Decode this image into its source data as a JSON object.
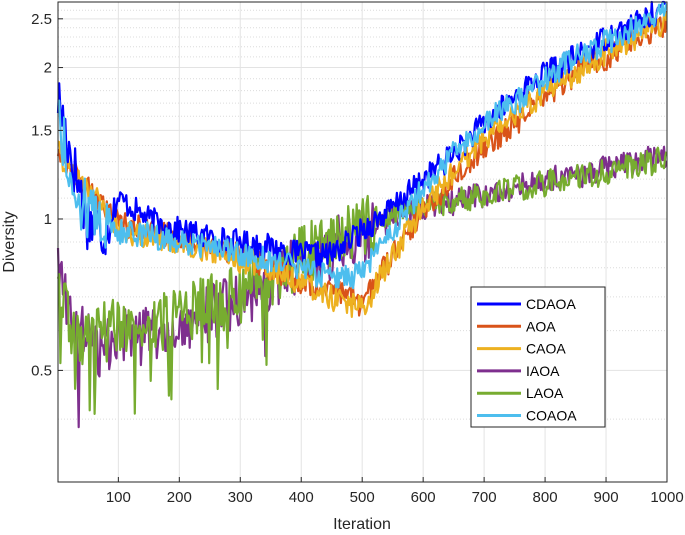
{
  "chart_data": {
    "type": "line",
    "title": "",
    "xlabel": "Iteration",
    "ylabel": "Diversity",
    "xlim": [
      1,
      1000
    ],
    "ylim": [
      0.3,
      2.7
    ],
    "y_scale": "log",
    "grid": true,
    "minor_grid": true,
    "legend_position": "lower-right",
    "x_ticks": [
      100,
      200,
      300,
      400,
      500,
      600,
      700,
      800,
      900,
      1000
    ],
    "y_ticks": [
      0.5,
      1,
      1.5,
      2,
      2.5
    ],
    "x_tick_labels": [
      "100",
      "200",
      "300",
      "400",
      "500",
      "600",
      "700",
      "800",
      "900",
      "1000"
    ],
    "y_tick_labels": [
      "0.5",
      "1",
      "1.5",
      "2",
      "2.5"
    ],
    "x": [
      1,
      25,
      50,
      75,
      100,
      150,
      200,
      250,
      300,
      350,
      400,
      450,
      500,
      550,
      600,
      650,
      700,
      750,
      800,
      850,
      900,
      950,
      1000
    ],
    "series": [
      {
        "name": "CDAOA",
        "color": "#0000FF",
        "values": [
          1.75,
          1.3,
          1.0,
          0.95,
          1.1,
          1.0,
          0.95,
          0.92,
          0.9,
          0.88,
          0.85,
          0.85,
          0.95,
          1.05,
          1.2,
          1.35,
          1.55,
          1.75,
          1.95,
          2.1,
          2.3,
          2.45,
          2.65
        ]
      },
      {
        "name": "AOA",
        "color": "#D95319",
        "values": [
          1.4,
          1.25,
          1.15,
          1.05,
          0.98,
          0.95,
          0.92,
          0.88,
          0.85,
          0.8,
          0.75,
          0.72,
          0.68,
          0.85,
          1.05,
          1.2,
          1.4,
          1.55,
          1.75,
          1.95,
          2.1,
          2.3,
          2.45
        ]
      },
      {
        "name": "CAOA",
        "color": "#EDB120",
        "values": [
          1.35,
          1.25,
          1.15,
          1.05,
          0.95,
          0.92,
          0.9,
          0.87,
          0.83,
          0.8,
          0.75,
          0.7,
          0.66,
          0.85,
          1.05,
          1.25,
          1.45,
          1.6,
          1.8,
          1.95,
          2.15,
          2.3,
          2.5
        ]
      },
      {
        "name": "IAOA",
        "color": "#7E2F8E",
        "values": [
          0.8,
          0.6,
          0.58,
          0.56,
          0.58,
          0.6,
          0.6,
          0.65,
          0.7,
          0.76,
          0.82,
          0.88,
          0.95,
          1.0,
          1.05,
          1.08,
          1.12,
          1.15,
          1.2,
          1.22,
          1.26,
          1.3,
          1.35
        ]
      },
      {
        "name": "LAOA",
        "color": "#77AC30",
        "values": [
          0.72,
          0.6,
          0.58,
          0.6,
          0.62,
          0.62,
          0.64,
          0.68,
          0.72,
          0.78,
          0.85,
          0.92,
          0.98,
          1.03,
          1.06,
          1.09,
          1.12,
          1.15,
          1.18,
          1.21,
          1.24,
          1.28,
          1.32
        ]
      },
      {
        "name": "COAOA",
        "color": "#4DBEEE",
        "values": [
          1.65,
          1.15,
          1.05,
          0.98,
          0.95,
          0.93,
          0.9,
          0.88,
          0.86,
          0.83,
          0.8,
          0.76,
          0.78,
          0.95,
          1.15,
          1.35,
          1.55,
          1.7,
          1.9,
          2.1,
          2.25,
          2.4,
          2.6
        ]
      }
    ]
  }
}
